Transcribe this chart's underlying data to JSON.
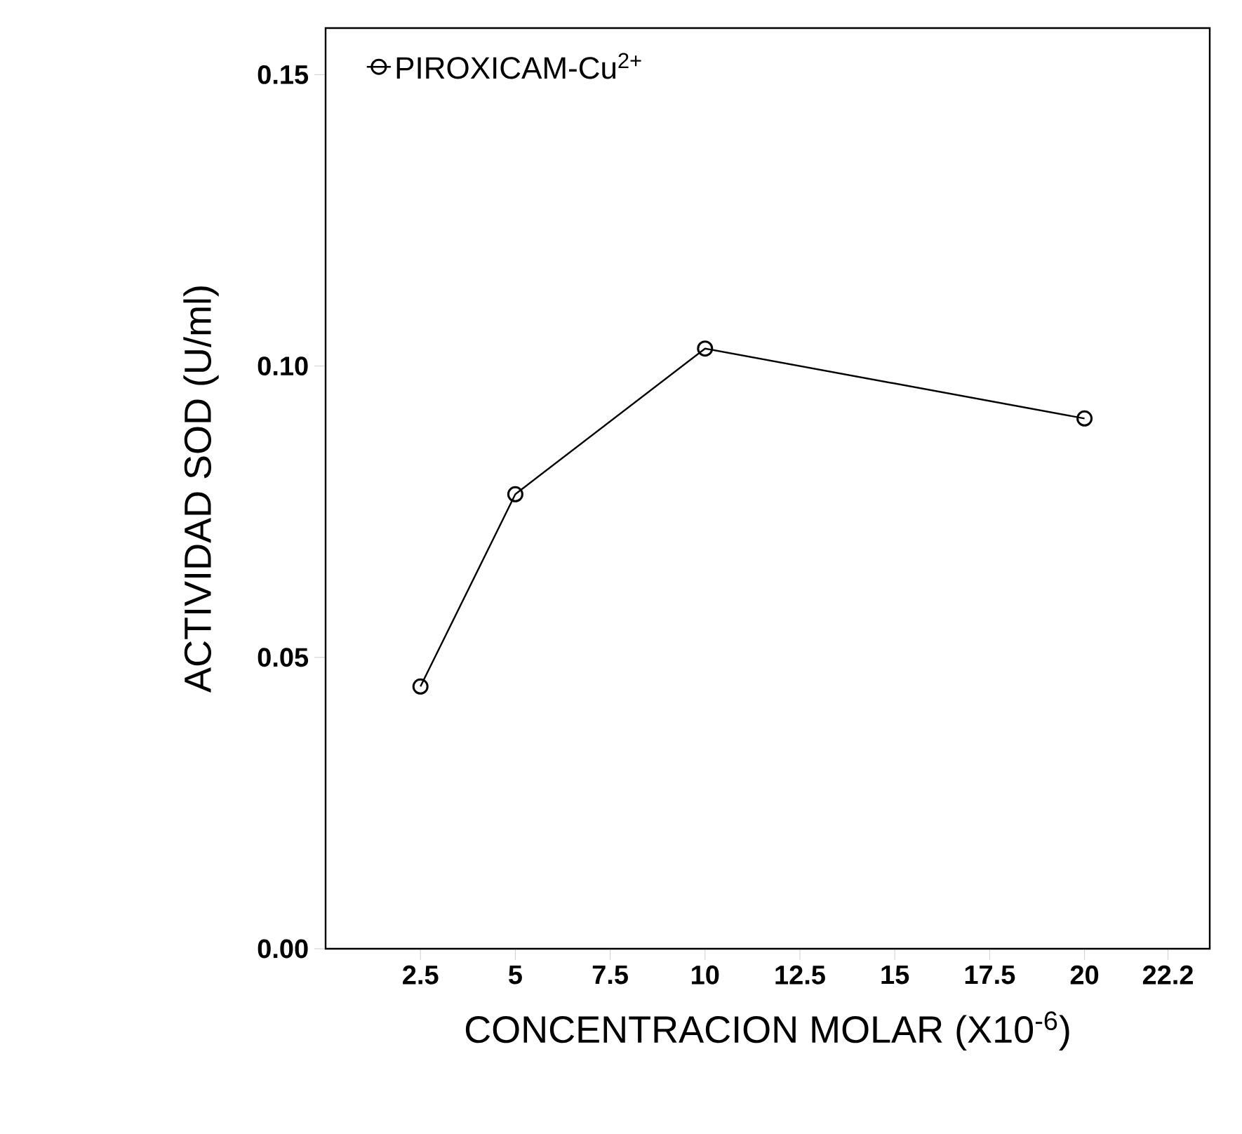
{
  "chart_data": {
    "type": "line",
    "xlabel": "CONCENTRACION MOLAR (X10$^{-6}$)",
    "ylabel": "ACTIVIDAD SOD (U/ml)",
    "x": [
      2.5,
      5,
      10,
      20
    ],
    "series": [
      {
        "name": "PIROXICAM-Cu$^{2+}$",
        "color": "#000000",
        "values": [
          0.045,
          0.078,
          0.103,
          0.091
        ]
      }
    ],
    "xlim": [
      0,
      23.3
    ],
    "ylim": [
      0,
      0.158
    ],
    "xticks": [
      2.5,
      5,
      7.5,
      10,
      12.5,
      15,
      17.5,
      20,
      22.2
    ],
    "yticks": [
      {
        "value": 0,
        "label": "0.00"
      },
      {
        "value": 0.05,
        "label": "0.05"
      },
      {
        "value": 0.1,
        "label": "0.10"
      },
      {
        "value": 0.15,
        "label": "0.15"
      }
    ],
    "marker": "circle",
    "line_style": "solid",
    "legend": "top left",
    "grid": false
  }
}
